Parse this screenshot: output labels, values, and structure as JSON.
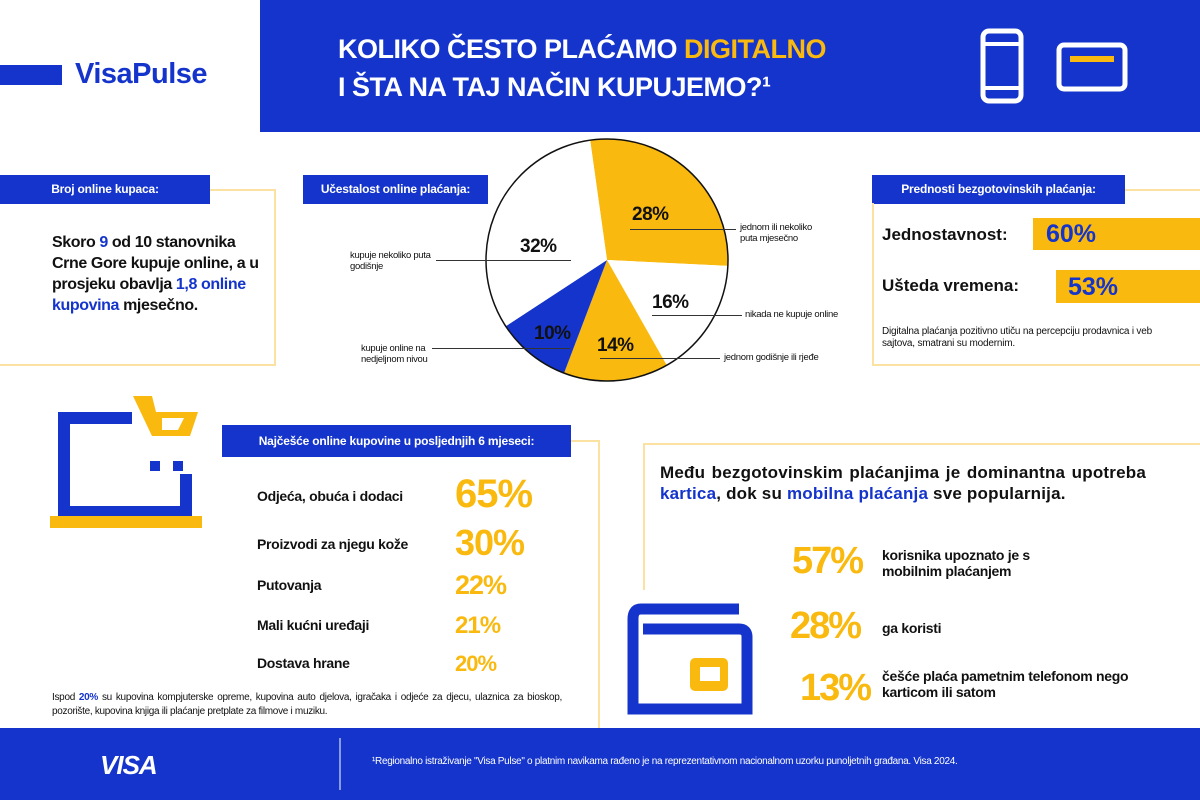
{
  "brand": {
    "logo": "VisaPulse",
    "footer_logo": "VISA"
  },
  "header": {
    "title_line1_a": "KOLIKO ČESTO PLAĆAMO ",
    "title_line1_b": "DIGITALNO",
    "title_line2": "I ŠTA NA TAJ NAČIN KUPUJEMO?¹"
  },
  "buyers": {
    "label": "Broj online kupaca:",
    "t1": "Skoro ",
    "t2": "9",
    "t3": " od 10 stanovnika Crne Gore kupuje online, a u prosjeku obavlja ",
    "t4": "1,8 online kupovina",
    "t5": " mjesečno."
  },
  "frequency": {
    "label": "Učestalost online plaćanja:"
  },
  "chart_data": {
    "type": "pie",
    "title": "Učestalost online plaćanja:",
    "slices": [
      {
        "label": "jednom ili nekoliko puta mjesečno",
        "value": 28,
        "display": "28%",
        "color": "#F9B90F"
      },
      {
        "label": "nikada ne kupuje online",
        "value": 16,
        "display": "16%",
        "color": "#FFFFFF"
      },
      {
        "label": "jednom godišnje ili rjeđe",
        "value": 14,
        "display": "14%",
        "color": "#F9B90F"
      },
      {
        "label": "kupuje online na nedjeljnom nivou",
        "value": 10,
        "display": "10%",
        "color": "#1434CB"
      },
      {
        "label": "kupuje nekoliko puta godišnje",
        "value": 32,
        "display": "32%",
        "color": "#FFFFFF"
      }
    ]
  },
  "advantages": {
    "label": "Prednosti bezgotovinskih plaćanja:",
    "items": [
      {
        "name": "Jednostavnost:",
        "value": "60%"
      },
      {
        "name": "Ušteda vremena:",
        "value": "53%"
      }
    ],
    "note": "Digitalna plaćanja pozitivno utiču na percepciju prodavnica i veb sajtova, smatrani su modernim."
  },
  "purchases": {
    "label": "Najčešće online kupovine u posljednjih 6 mjeseci:",
    "items": [
      {
        "name": "Odjeća, obuća i dodaci",
        "value": "65%"
      },
      {
        "name": "Proizvodi za njegu kože",
        "value": "30%"
      },
      {
        "name": "Putovanja",
        "value": "22%"
      },
      {
        "name": "Mali kućni uređaji",
        "value": "21%"
      },
      {
        "name": "Dostava hrane",
        "value": "20%"
      }
    ],
    "note_a": "Ispod ",
    "note_b": "20%",
    "note_c": " su kupovina kompjuterske opreme, kupovina auto djelova, igračaka i odjeće za djecu, ulaznica za bioskop, pozorište, kupovina knjiga ili plaćanje pretplate za filmove i muziku."
  },
  "cashless": {
    "h1": "Među bezgotovinskim plaćanjima je dominantna upotreba ",
    "h2": "kartica",
    "h3": ", dok su ",
    "h4": "mobilna plaćanja",
    "h5": " sve popularnija.",
    "stats": [
      {
        "value": "57%",
        "text": "korisnika upoznato je s mobilnim plaćanjem"
      },
      {
        "value": "28%",
        "text": "ga koristi"
      },
      {
        "value": "13%",
        "text": "češće plaća pametnim telefonom nego karticom ili satom"
      }
    ]
  },
  "footer": {
    "note": "¹Regionalno istraživanje \"Visa Pulse\" o platnim navikama rađeno je na reprezentativnom nacionalnom uzorku punoljetnih građana. Visa 2024."
  }
}
